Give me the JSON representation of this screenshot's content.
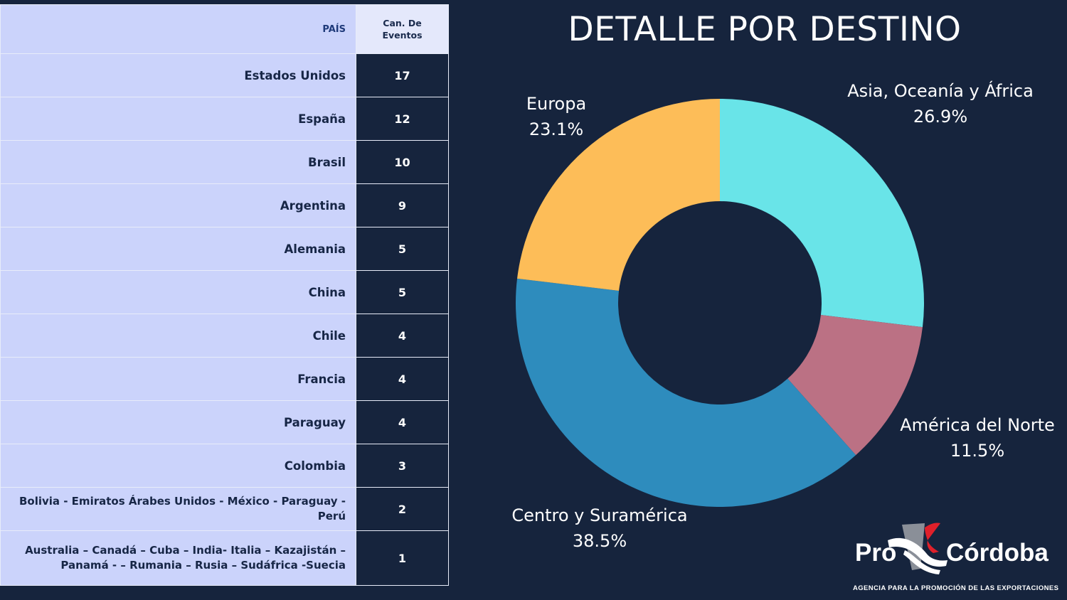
{
  "table": {
    "header_country": "PAÍS",
    "header_count_line1": "Can. De",
    "header_count_line2": "Eventos",
    "rows": [
      {
        "country": "Estados Unidos",
        "count": "17"
      },
      {
        "country": "España",
        "count": "12"
      },
      {
        "country": "Brasil",
        "count": "10"
      },
      {
        "country": "Argentina",
        "count": "9"
      },
      {
        "country": "Alemania",
        "count": "5"
      },
      {
        "country": "China",
        "count": "5"
      },
      {
        "country": "Chile",
        "count": "4"
      },
      {
        "country": "Francia",
        "count": "4"
      },
      {
        "country": "Paraguay",
        "count": "4"
      },
      {
        "country": "Colombia",
        "count": "3"
      },
      {
        "country": "Bolivia - Emiratos Árabes Unidos - México - Paraguay - Perú",
        "count": "2"
      },
      {
        "country_line1": "Australia – Canadá – Cuba – India- Italia – Kazajistán –",
        "country_line2": "Panamá -   – Rumania – Rusia – Sudáfrica -Suecia",
        "count": "1"
      }
    ]
  },
  "chart_data": {
    "type": "pie",
    "title": "DETALLE POR DESTINO",
    "donut": true,
    "slices": [
      {
        "label": "Asia, Oceanía y África",
        "value": 26.9,
        "display": "26.9%",
        "color": "#69e4e8"
      },
      {
        "label": "América del Norte",
        "value": 11.5,
        "display": "11.5%",
        "color": "#bb7184"
      },
      {
        "label": "Centro y Suramérica",
        "value": 38.5,
        "display": "38.5%",
        "color": "#2e8cbd"
      },
      {
        "label": "Europa",
        "value": 23.1,
        "display": "23.1%",
        "color": "#fdbd58"
      }
    ]
  },
  "logo": {
    "pro": "Pro",
    "cordoba": "Córdoba",
    "tagline": "AGENCIA PARA LA PROMOCIÓN DE LAS EXPORTACIONES"
  },
  "colors": {
    "background": "#16243d",
    "table_country_bg": "#cbd3fb",
    "table_header_count_bg": "#e4e8fb",
    "logo_accent_red": "#e0202a",
    "logo_accent_gray": "#8a8f98"
  }
}
